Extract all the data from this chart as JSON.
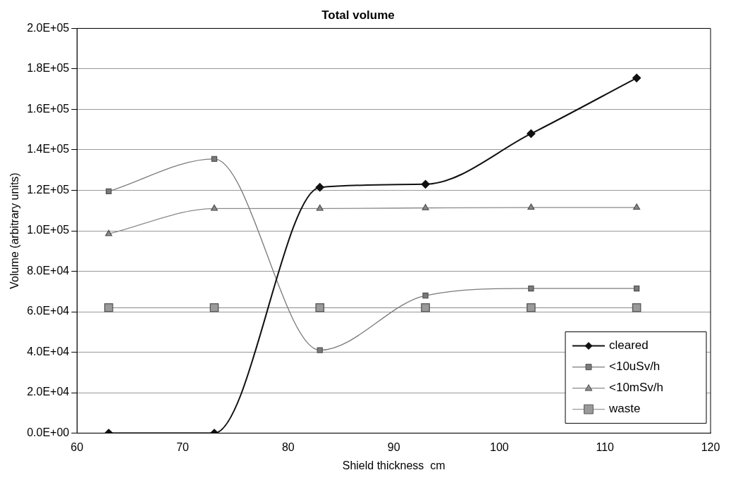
{
  "chart_data": {
    "type": "line",
    "title": "Total volume",
    "xlabel": "Shield thickness  cm",
    "ylabel": "Volume (arbitrary units)",
    "xlim": [
      60,
      120
    ],
    "xticks": [
      60,
      70,
      80,
      90,
      100,
      110,
      120
    ],
    "ylim": [
      0,
      200000
    ],
    "yticks": [
      {
        "value": 0,
        "label": "0.0E+00"
      },
      {
        "value": 20000,
        "label": "2.0E+04"
      },
      {
        "value": 40000,
        "label": "4.0E+04"
      },
      {
        "value": 60000,
        "label": "6.0E+04"
      },
      {
        "value": 80000,
        "label": "8.0E+04"
      },
      {
        "value": 100000,
        "label": "1.0E+05"
      },
      {
        "value": 120000,
        "label": "1.2E+05"
      },
      {
        "value": 140000,
        "label": "1.4E+05"
      },
      {
        "value": 160000,
        "label": "1.6E+05"
      },
      {
        "value": 180000,
        "label": "1.8E+05"
      },
      {
        "value": 200000,
        "label": "2.0E+05"
      }
    ],
    "x": [
      63,
      73,
      83,
      93,
      103,
      113
    ],
    "grid": "y",
    "legend": "bottom right",
    "series": [
      {
        "name": "cleared",
        "color": "#111111",
        "marker": "diamond",
        "values": [
          0,
          0,
          121500,
          123000,
          148000,
          175500
        ]
      },
      {
        "name": "<10uSv/h",
        "color": "#7a7a7a",
        "marker": "square",
        "values": [
          119500,
          135500,
          41000,
          68000,
          71500,
          71500
        ]
      },
      {
        "name": "<10mSv/h",
        "color": "#8a8a8a",
        "marker": "triangle",
        "values": [
          98500,
          111000,
          111000,
          111300,
          111500,
          111500
        ]
      },
      {
        "name": "waste",
        "color": "#9a9a9a",
        "marker": "square",
        "values": [
          62000,
          62000,
          62000,
          62000,
          62000,
          62000
        ]
      }
    ]
  }
}
